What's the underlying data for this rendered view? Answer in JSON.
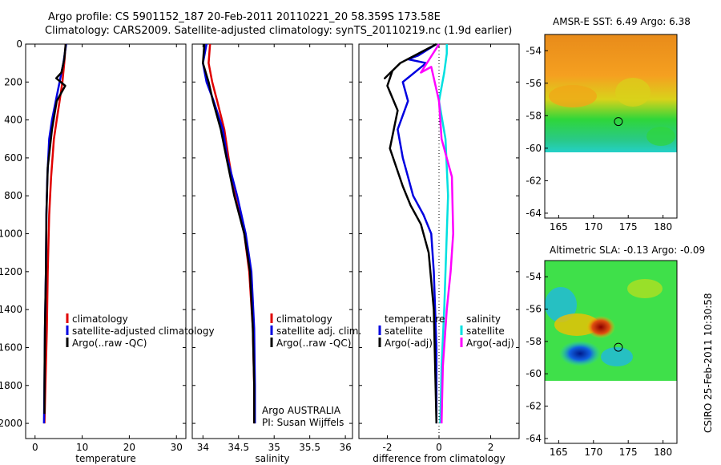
{
  "header": {
    "line1": "Argo profile: CS 5901152_187 20-Feb-2011 20110221_20 58.359S 173.58E",
    "line2": "Climatology: CARS2009. Satellite-adjusted climatology: synTS_20110219.nc (1.9d earlier)"
  },
  "side_label": "CSIRO 25-Feb-2011 10:30:58",
  "colors": {
    "climatology": "#e00000",
    "satellite": "#0000e0",
    "argo": "#000000",
    "argo_salinity": "#ff00ff",
    "sat_salinity": "#00e0e0"
  },
  "chart_data": [
    {
      "type": "line",
      "id": "temperature",
      "xlabel": "temperature",
      "ylabel": "",
      "xlim": [
        -2,
        32
      ],
      "ylim": [
        2080,
        0
      ],
      "xticks": [
        0,
        10,
        20,
        30
      ],
      "yticks": [
        0,
        200,
        400,
        600,
        800,
        1000,
        1200,
        1400,
        1600,
        1800,
        2000
      ],
      "legend": [
        "climatology",
        "satellite-adjusted climatology",
        "Argo(..raw -QC)"
      ],
      "series": [
        {
          "name": "climatology",
          "color": "#e00000",
          "x": [
            6.5,
            6.2,
            5.8,
            5.2,
            4.6,
            4.0,
            3.4,
            3.0,
            2.7,
            2.5,
            2.2,
            2.0
          ],
          "y": [
            0,
            100,
            200,
            300,
            400,
            500,
            700,
            900,
            1200,
            1500,
            1800,
            2000
          ]
        },
        {
          "name": "satellite-adjusted climatology",
          "color": "#0000e0",
          "x": [
            6.6,
            6.0,
            5.2,
            4.4,
            3.6,
            3.0,
            2.6,
            2.4,
            2.3,
            2.1,
            2.0,
            1.9
          ],
          "y": [
            0,
            100,
            200,
            300,
            400,
            500,
            700,
            900,
            1200,
            1500,
            1800,
            2000
          ]
        },
        {
          "name": "Argo(..raw -QC)",
          "color": "#000000",
          "x": [
            6.5,
            6.2,
            5.6,
            4.5,
            6.4,
            4.6,
            3.6,
            2.7,
            2.4,
            2.3,
            2.1,
            2.0,
            2.0
          ],
          "y": [
            0,
            80,
            150,
            180,
            220,
            300,
            450,
            650,
            900,
            1200,
            1500,
            1800,
            1950
          ]
        }
      ]
    },
    {
      "type": "line",
      "id": "salinity",
      "xlabel": "salinity",
      "ylabel": "",
      "xlim": [
        33.85,
        36.1
      ],
      "ylim": [
        2080,
        0
      ],
      "xticks": [
        34,
        34.5,
        35,
        35.5,
        36
      ],
      "legend": [
        "climatology",
        "satellite adj. clim.",
        "Argo(..raw -QC)"
      ],
      "annotation": [
        "Argo AUSTRALIA",
        "PI: Susan Wijffels"
      ],
      "series": [
        {
          "name": "climatology",
          "color": "#e00000",
          "x": [
            34.1,
            34.08,
            34.13,
            34.2,
            34.3,
            34.36,
            34.45,
            34.58,
            34.65,
            34.7,
            34.72,
            34.72
          ],
          "y": [
            0,
            100,
            200,
            300,
            450,
            600,
            800,
            1000,
            1200,
            1500,
            1800,
            2000
          ]
        },
        {
          "name": "satellite adj. clim.",
          "color": "#0000e0",
          "x": [
            34.05,
            34.0,
            34.05,
            34.15,
            34.28,
            34.34,
            34.48,
            34.6,
            34.68,
            34.72,
            34.73,
            34.73
          ],
          "y": [
            0,
            100,
            200,
            300,
            450,
            600,
            800,
            1000,
            1200,
            1500,
            1800,
            2000
          ]
        },
        {
          "name": "Argo(..raw -QC)",
          "color": "#000000",
          "x": [
            34.02,
            34.0,
            34.08,
            34.14,
            34.25,
            34.33,
            34.44,
            34.58,
            34.66,
            34.7,
            34.72,
            34.72
          ],
          "y": [
            0,
            100,
            200,
            300,
            450,
            600,
            800,
            1000,
            1200,
            1500,
            1800,
            2000
          ]
        }
      ]
    },
    {
      "type": "line",
      "id": "difference",
      "xlabel": "difference from climatology",
      "ylabel": "",
      "xlim": [
        -3.1,
        3.1
      ],
      "ylim": [
        2080,
        0
      ],
      "xticks": [
        -2,
        0,
        2
      ],
      "legend": [
        "temperature",
        "satellite",
        "Argo(-adj)",
        "salinity",
        "satellite",
        "Argo(-adj)"
      ],
      "series": [
        {
          "name": "temperature satellite",
          "color": "#0000e0",
          "x": [
            -0.1,
            -0.8,
            -1.2,
            -0.5,
            -1.4,
            -1.2,
            -1.6,
            -1.4,
            -1.2,
            -1.0,
            -0.6,
            -0.3,
            -0.2,
            -0.1,
            -0.1
          ],
          "y": [
            0,
            60,
            80,
            100,
            200,
            300,
            450,
            600,
            700,
            800,
            900,
            1000,
            1200,
            1600,
            2000
          ]
        },
        {
          "name": "temperature Argo(-adj)",
          "color": "#000000",
          "x": [
            -0.1,
            -1.5,
            -2.1,
            -1.8,
            -2.0,
            -1.6,
            -1.9,
            -1.4,
            -1.1,
            -0.7,
            -0.4,
            -0.2,
            -0.1
          ],
          "y": [
            0,
            100,
            180,
            140,
            220,
            350,
            550,
            750,
            850,
            950,
            1100,
            1400,
            2000
          ]
        },
        {
          "name": "salinity satellite",
          "color": "#00e0e0",
          "x": [
            0.3,
            0.3,
            0.2,
            0.0,
            0.25,
            0.35,
            0.3,
            0.25,
            0.2,
            0.1,
            0.05
          ],
          "y": [
            0,
            50,
            150,
            300,
            500,
            800,
            1000,
            1200,
            1400,
            1700,
            2000
          ]
        },
        {
          "name": "salinity Argo(-adj)",
          "color": "#ff00ff",
          "x": [
            0.0,
            -0.7,
            -0.3,
            0.0,
            0.1,
            0.5,
            0.55,
            0.45,
            0.3,
            0.15,
            0.1
          ],
          "y": [
            0,
            150,
            120,
            300,
            500,
            700,
            1000,
            1200,
            1400,
            1700,
            2000
          ]
        }
      ]
    },
    {
      "type": "heatmap",
      "id": "sst_map",
      "title": "AMSR-E SST: 6.49 Argo: 6.38",
      "xlim": [
        163,
        182
      ],
      "ylim": [
        -64.3,
        -53
      ],
      "xticks": [
        165,
        170,
        175,
        180
      ],
      "yticks": [
        -54,
        -56,
        -58,
        -60,
        -62,
        -64
      ],
      "argo_position": {
        "lon": 173.58,
        "lat": -58.359
      }
    },
    {
      "type": "heatmap",
      "id": "sla_map",
      "title": "Altimetric SLA: -0.13 Argo: -0.09",
      "xlim": [
        163,
        182
      ],
      "ylim": [
        -64.3,
        -53
      ],
      "xticks": [
        165,
        170,
        175,
        180
      ],
      "yticks": [
        -54,
        -56,
        -58,
        -60,
        -62,
        -64
      ],
      "argo_position": {
        "lon": 173.58,
        "lat": -58.359
      }
    }
  ]
}
